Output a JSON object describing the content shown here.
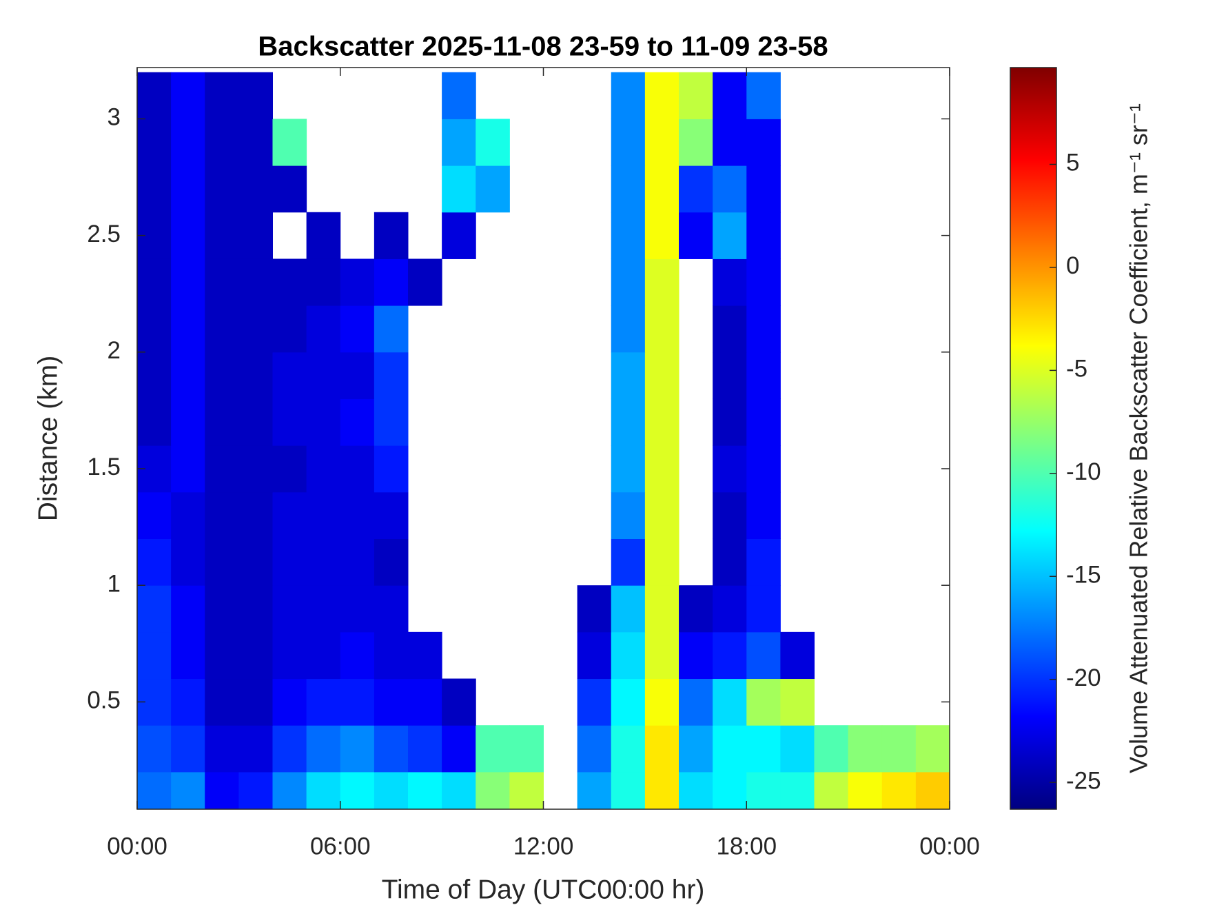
{
  "chart_data": {
    "type": "heatmap",
    "title": "Backscatter 2025-11-08 23-59 to 11-09 23-58",
    "x_label": "Time of Day (UTC00:00 hr)",
    "y_label": "Distance (km)",
    "colorbar_label": "Volume Attenuated Relative Backscatter Coefficient, m⁻¹ sr⁻¹",
    "colormap": "jet",
    "xlim": [
      0,
      24
    ],
    "xticks": [
      {
        "value": 0,
        "label": "00:00"
      },
      {
        "value": 6,
        "label": "06:00"
      },
      {
        "value": 12,
        "label": "12:00"
      },
      {
        "value": 18,
        "label": "18:00"
      },
      {
        "value": 24,
        "label": "00:00"
      }
    ],
    "ylim": [
      0.04,
      3.22
    ],
    "yticks": [
      0.5,
      1,
      1.5,
      2,
      2.5,
      3
    ],
    "clim": [
      -26.3,
      9.7
    ],
    "cticks": [
      -25,
      -20,
      -15,
      -10,
      -5,
      0,
      5
    ],
    "x": [
      0.5,
      1.5,
      2.5,
      3.5,
      4.5,
      5.5,
      6.5,
      7.5,
      8.5,
      9.5,
      10.5,
      11.5,
      12.5,
      13.5,
      14.5,
      15.5,
      16.5,
      17.5,
      18.5,
      19.5,
      20.5,
      21.5,
      22.5,
      23.5
    ],
    "y": [
      0.1,
      0.3,
      0.5,
      0.7,
      0.9,
      1.1,
      1.3,
      1.5,
      1.7,
      1.9,
      2.1,
      2.3,
      2.5,
      2.7,
      2.9,
      3.1
    ],
    "z": [
      [
        -18,
        -17,
        -22,
        -21,
        -17,
        -14,
        -13,
        -14,
        -13,
        -14,
        -8,
        -6,
        null,
        -16,
        -12,
        -3,
        -14,
        -13,
        -12,
        -12,
        -6,
        -4,
        -3,
        -2
      ],
      [
        -19,
        -20,
        -23,
        -23,
        -20,
        -18,
        -17,
        -19,
        -20,
        -22,
        -10,
        -10,
        null,
        -18,
        -12,
        -3,
        -16,
        -13,
        -13,
        -14,
        -10,
        -8,
        -8,
        -7
      ],
      [
        -20,
        -21,
        -24,
        -24,
        -22,
        -21,
        -21,
        -22,
        -22,
        -24,
        null,
        null,
        null,
        -20,
        -13,
        -4,
        -18,
        -14,
        -7,
        -6,
        null,
        null,
        null,
        null
      ],
      [
        -20,
        -22,
        -24,
        -24,
        -23,
        -23,
        -22,
        -23,
        -23,
        null,
        null,
        null,
        null,
        -23,
        -14,
        -5,
        -22,
        -21,
        -19,
        -23,
        null,
        null,
        null,
        null
      ],
      [
        -20,
        -22,
        -24,
        -24,
        -23,
        -23,
        -23,
        -23,
        null,
        null,
        null,
        null,
        null,
        -24,
        -15,
        -5,
        -24,
        -23,
        -21,
        null,
        null,
        null,
        null,
        null
      ],
      [
        -21,
        -23,
        -24,
        -24,
        -23,
        -23,
        -23,
        -24,
        null,
        null,
        null,
        null,
        null,
        null,
        -20,
        -5,
        null,
        -24,
        -21,
        null,
        null,
        null,
        null,
        null
      ],
      [
        -22,
        -23,
        -24,
        -24,
        -23,
        -23,
        -23,
        -23,
        null,
        null,
        null,
        null,
        null,
        null,
        -17,
        -5,
        null,
        -24,
        -22,
        null,
        null,
        null,
        null,
        null
      ],
      [
        -23,
        -22,
        -24,
        -24,
        -24,
        -23,
        -23,
        -21,
        null,
        null,
        null,
        null,
        null,
        null,
        -16,
        -5,
        null,
        -23,
        -22,
        null,
        null,
        null,
        null,
        null
      ],
      [
        -24,
        -22,
        -24,
        -24,
        -23,
        -23,
        -22,
        -20,
        null,
        null,
        null,
        null,
        null,
        null,
        -16,
        -5,
        null,
        -24,
        -22,
        null,
        null,
        null,
        null,
        null
      ],
      [
        -24,
        -22,
        -24,
        -24,
        -23,
        -23,
        -23,
        -20,
        null,
        null,
        null,
        null,
        null,
        null,
        -16,
        -5,
        null,
        -24,
        -22,
        null,
        null,
        null,
        null,
        null
      ],
      [
        -24,
        -22,
        -24,
        -24,
        -24,
        -23,
        -22,
        -18,
        null,
        null,
        null,
        null,
        null,
        null,
        -17,
        -5,
        null,
        -24,
        -22,
        null,
        null,
        null,
        null,
        null
      ],
      [
        -24,
        -22,
        -24,
        -24,
        -24,
        -24,
        -23,
        -22,
        -24,
        null,
        null,
        null,
        null,
        null,
        -17,
        -5,
        null,
        -23,
        -22,
        null,
        null,
        null,
        null,
        null
      ],
      [
        -24,
        -22,
        -24,
        -24,
        null,
        -24,
        null,
        -24,
        null,
        -23,
        null,
        null,
        null,
        null,
        -17,
        -4,
        -22,
        -16,
        -22,
        null,
        null,
        null,
        null,
        null
      ],
      [
        -24,
        -22,
        -24,
        -24,
        -24,
        null,
        null,
        null,
        null,
        -14,
        -16,
        null,
        null,
        null,
        -17,
        -4,
        -20,
        -18,
        -22,
        null,
        null,
        null,
        null,
        null
      ],
      [
        -24,
        -22,
        -24,
        -24,
        -10,
        null,
        null,
        null,
        null,
        -16,
        -12,
        null,
        null,
        null,
        -17,
        -4,
        -8,
        -22,
        -22,
        null,
        null,
        null,
        null,
        null
      ],
      [
        -24,
        -22,
        -24,
        -24,
        null,
        null,
        null,
        null,
        null,
        -18,
        null,
        null,
        null,
        null,
        -17,
        -4,
        -6,
        -22,
        -18,
        null,
        null,
        null,
        null,
        null
      ]
    ]
  }
}
